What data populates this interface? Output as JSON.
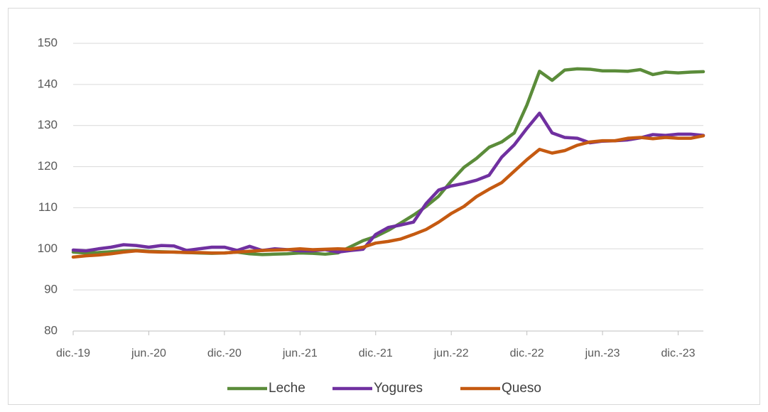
{
  "chart_data": {
    "type": "line",
    "categories": [
      "dic.-19",
      null,
      null,
      null,
      null,
      null,
      "jun.-20",
      null,
      null,
      null,
      null,
      null,
      "dic.-20",
      null,
      null,
      null,
      null,
      null,
      "jun.-21",
      null,
      null,
      null,
      null,
      null,
      "dic.-21",
      null,
      null,
      null,
      null,
      null,
      "jun.-22",
      null,
      null,
      null,
      null,
      null,
      "dic.-22",
      null,
      null,
      null,
      null,
      null,
      "jun.-23",
      null,
      null,
      null,
      null,
      null,
      "dic.-23",
      null,
      null
    ],
    "series": [
      {
        "name": "Leche",
        "color": "#5b8c3a",
        "values": [
          99.2,
          99.0,
          99.1,
          99.3,
          99.5,
          99.6,
          99.4,
          99.3,
          99.2,
          99.1,
          99.0,
          98.9,
          99.0,
          99.2,
          98.8,
          98.6,
          98.7,
          98.8,
          99.0,
          98.9,
          98.7,
          99.0,
          100.5,
          102.0,
          103.0,
          104.5,
          106.3,
          108.2,
          110.3,
          112.8,
          116.5,
          119.8,
          122.0,
          124.7,
          126.0,
          128.2,
          135.0,
          143.2,
          141.0,
          143.5,
          143.8,
          143.7,
          143.3,
          143.3,
          143.2,
          143.6,
          142.4,
          143.0,
          142.8,
          143.0,
          143.1
        ]
      },
      {
        "name": "Yogures",
        "color": "#7030a0",
        "values": [
          99.7,
          99.5,
          100.0,
          100.4,
          101.0,
          100.8,
          100.4,
          100.8,
          100.7,
          99.6,
          100.0,
          100.4,
          100.4,
          99.6,
          100.6,
          99.6,
          100.0,
          99.8,
          99.5,
          99.5,
          99.8,
          99.2,
          99.6,
          99.9,
          103.5,
          105.2,
          105.8,
          106.5,
          111.0,
          114.3,
          115.3,
          115.9,
          116.7,
          117.9,
          122.3,
          125.3,
          129.3,
          133.0,
          128.2,
          127.1,
          126.9,
          125.8,
          126.2,
          126.3,
          126.5,
          127.0,
          127.8,
          127.6,
          127.9,
          127.9,
          127.6
        ]
      },
      {
        "name": "Queso",
        "color": "#c55a11",
        "values": [
          98.0,
          98.3,
          98.5,
          98.8,
          99.2,
          99.5,
          99.3,
          99.2,
          99.2,
          99.1,
          99.1,
          99.0,
          99.0,
          99.2,
          99.4,
          99.6,
          99.7,
          99.8,
          100.0,
          99.8,
          99.9,
          100.0,
          99.9,
          100.4,
          101.4,
          101.8,
          102.4,
          103.5,
          104.7,
          106.5,
          108.6,
          110.3,
          112.7,
          114.5,
          116.1,
          118.9,
          121.7,
          124.2,
          123.3,
          123.9,
          125.2,
          126.0,
          126.3,
          126.3,
          126.9,
          127.1,
          126.8,
          127.1,
          126.9,
          126.9,
          127.5
        ]
      }
    ],
    "ylim": [
      80,
      150
    ],
    "yticks": [
      80,
      90,
      100,
      110,
      120,
      130,
      140,
      150
    ],
    "grid": true,
    "legend": "bottom"
  }
}
